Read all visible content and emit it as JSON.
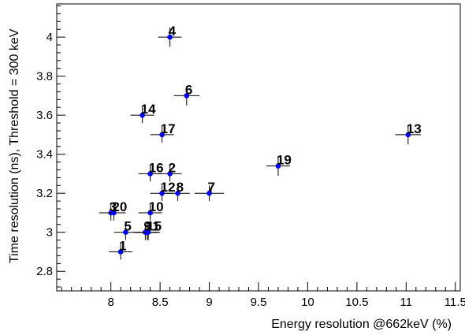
{
  "chart_data": {
    "type": "scatter",
    "title": "",
    "xlabel": "Energy resolution @662keV (%)",
    "ylabel": "Time resolution (ns), Threshold = 300 keV",
    "xlim": [
      7.45,
      11.55
    ],
    "ylim": [
      2.7,
      4.17
    ],
    "xticks": [
      8,
      8.5,
      9,
      9.5,
      10,
      10.5,
      11,
      11.5
    ],
    "yticks": [
      2.8,
      3,
      3.2,
      3.4,
      3.6,
      3.8,
      4
    ],
    "grid": false,
    "points": [
      {
        "label": "1",
        "x": 8.1,
        "y": 2.9,
        "xerr": 0.12,
        "yerr": 0.04
      },
      {
        "label": "2",
        "x": 8.6,
        "y": 3.3,
        "xerr": 0.12,
        "yerr": 0.04
      },
      {
        "label": "3",
        "x": 8.0,
        "y": 3.1,
        "xerr": 0.12,
        "yerr": 0.04
      },
      {
        "label": "4",
        "x": 8.6,
        "y": 4.0,
        "xerr": 0.12,
        "yerr": 0.05
      },
      {
        "label": "5",
        "x": 8.15,
        "y": 3.0,
        "xerr": 0.12,
        "yerr": 0.04
      },
      {
        "label": "6",
        "x": 8.77,
        "y": 3.7,
        "xerr": 0.13,
        "yerr": 0.05
      },
      {
        "label": "7",
        "x": 9.0,
        "y": 3.2,
        "xerr": 0.15,
        "yerr": 0.04
      },
      {
        "label": "8",
        "x": 8.68,
        "y": 3.2,
        "xerr": 0.12,
        "yerr": 0.04
      },
      {
        "label": "9",
        "x": 8.35,
        "y": 3.0,
        "xerr": 0.12,
        "yerr": 0.04
      },
      {
        "label": "10",
        "x": 8.4,
        "y": 3.1,
        "xerr": 0.12,
        "yerr": 0.04
      },
      {
        "label": "11",
        "x": 8.37,
        "y": 3.0,
        "xerr": 0.12,
        "yerr": 0.04
      },
      {
        "label": "12",
        "x": 8.52,
        "y": 3.2,
        "xerr": 0.12,
        "yerr": 0.04
      },
      {
        "label": "13",
        "x": 11.02,
        "y": 3.5,
        "xerr": 0.13,
        "yerr": 0.05
      },
      {
        "label": "14",
        "x": 8.32,
        "y": 3.6,
        "xerr": 0.12,
        "yerr": 0.04
      },
      {
        "label": "15",
        "x": 8.38,
        "y": 3.0,
        "xerr": 0.12,
        "yerr": 0.04
      },
      {
        "label": "16",
        "x": 8.4,
        "y": 3.3,
        "xerr": 0.12,
        "yerr": 0.04
      },
      {
        "label": "17",
        "x": 8.52,
        "y": 3.5,
        "xerr": 0.12,
        "yerr": 0.04
      },
      {
        "label": "19",
        "x": 9.7,
        "y": 3.34,
        "xerr": 0.12,
        "yerr": 0.05
      },
      {
        "label": "20",
        "x": 8.03,
        "y": 3.1,
        "xerr": 0.12,
        "yerr": 0.04
      }
    ],
    "colors": {
      "marker": "#0000ff",
      "errorbar": "#000000",
      "text": "#000000"
    }
  }
}
